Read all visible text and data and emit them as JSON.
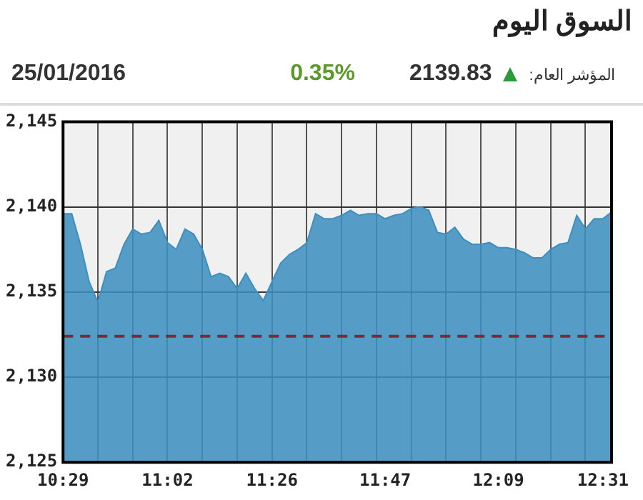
{
  "chart_data": {
    "type": "area",
    "title": "السوق اليوم",
    "annotations": [
      "المؤشر العام:",
      "2139.83",
      "0.35%",
      "25/01/2016"
    ],
    "categories": [
      "10:29",
      null,
      null,
      null,
      null,
      null,
      null,
      null,
      null,
      null,
      null,
      null,
      "11:02",
      null,
      null,
      null,
      null,
      null,
      null,
      null,
      null,
      null,
      null,
      null,
      "11:26",
      null,
      null,
      null,
      null,
      null,
      null,
      null,
      null,
      null,
      null,
      null,
      null,
      "11:47",
      null,
      null,
      null,
      null,
      null,
      null,
      null,
      null,
      null,
      null,
      null,
      null,
      "12:09",
      null,
      null,
      null,
      null,
      null,
      null,
      null,
      null,
      null,
      null,
      null,
      "12:31",
      null
    ],
    "series": [
      {
        "color": "#3d8fc0",
        "values": [
          2139.6,
          2139.6,
          2137.8,
          2135.6,
          2134.4,
          2136.2,
          2136.4,
          2137.8,
          2138.7,
          2138.4,
          2138.5,
          2139.2,
          2137.9,
          2137.5,
          2138.7,
          2138.4,
          2137.5,
          2135.9,
          2136.1,
          2135.9,
          2135.2,
          2136.1,
          2135.2,
          2134.5,
          2135.6,
          2136.7,
          2137.2,
          2137.5,
          2137.9,
          2139.6,
          2139.3,
          2139.3,
          2139.5,
          2139.8,
          2139.5,
          2139.6,
          2139.6,
          2139.3,
          2139.5,
          2139.6,
          2139.9,
          2140.0,
          2139.8,
          2138.5,
          2138.4,
          2138.8,
          2138.1,
          2137.8,
          2137.8,
          2137.9,
          2137.6,
          2137.6,
          2137.5,
          2137.3,
          2137.0,
          2137.0,
          2137.5,
          2137.8,
          2137.9,
          2139.5,
          2138.7,
          2139.3,
          2139.3,
          2139.7
        ]
      }
    ],
    "ylim": [
      2125,
      2145
    ],
    "yticks": [
      {
        "value": 2125,
        "label": "2,125"
      },
      {
        "value": 2130,
        "label": "2,130"
      },
      {
        "value": 2135,
        "label": "2,135"
      },
      {
        "value": 2140,
        "label": "2,140"
      },
      {
        "value": 2145,
        "label": "2,145"
      }
    ],
    "grid": true,
    "legend": false,
    "ref_lines": [
      {
        "axis": "y",
        "value": 2132.4,
        "color": "#7a2a3a",
        "line_style": "dashed"
      }
    ]
  }
}
